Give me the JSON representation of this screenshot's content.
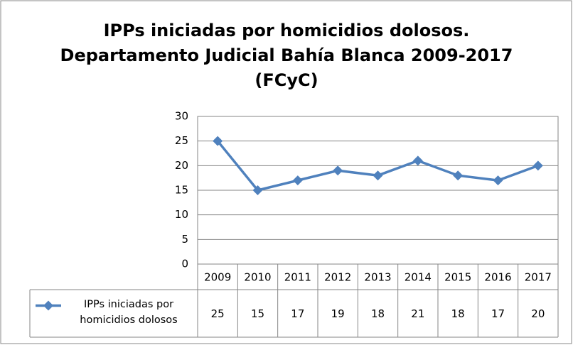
{
  "chart_data": {
    "type": "line",
    "title": "IPPs iniciadas por homicidios dolosos.\nDepartamento Judicial Bahía Blanca 2009-2017\n(FCyC)",
    "categories": [
      "2009",
      "2010",
      "2011",
      "2012",
      "2013",
      "2014",
      "2015",
      "2016",
      "2017"
    ],
    "series": [
      {
        "name": "IPPs iniciadas por homicidios dolosos",
        "color": "#4f81bd",
        "values": [
          25,
          15,
          17,
          19,
          18,
          21,
          18,
          17,
          20
        ]
      }
    ],
    "ylim": [
      0,
      30
    ],
    "yticks": [
      0,
      5,
      10,
      15,
      20,
      25,
      30
    ],
    "grid": true,
    "data_table": true
  }
}
